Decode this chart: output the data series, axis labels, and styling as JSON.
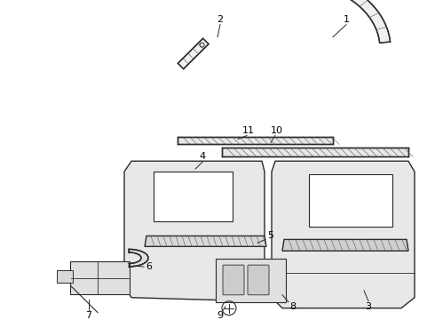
{
  "background_color": "#ffffff",
  "fig_width": 4.9,
  "fig_height": 3.6,
  "dpi": 100,
  "line_color": "#2a2a2a",
  "line_width": 1.0,
  "label_fontsize": 8,
  "label_color": "#000000",
  "hatch_color": "#555555"
}
